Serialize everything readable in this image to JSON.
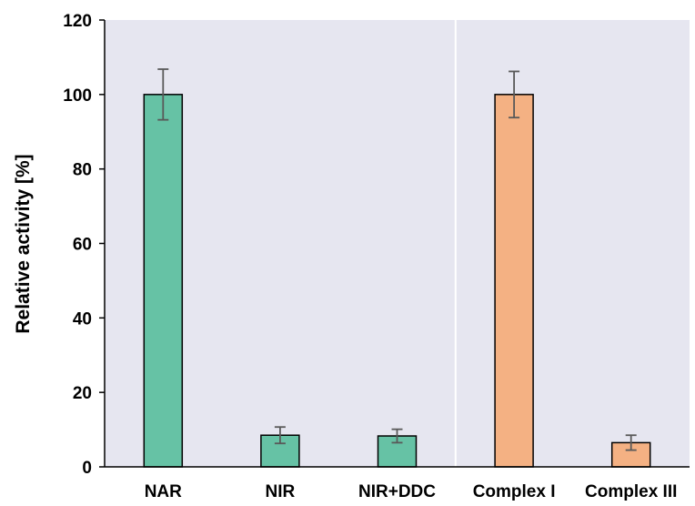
{
  "chart_data": {
    "type": "bar",
    "title": "",
    "xlabel": "",
    "ylabel": "Relative activity [%]",
    "ylim": [
      0,
      120
    ],
    "yticks": [
      0,
      20,
      40,
      60,
      80,
      100,
      120
    ],
    "grid": false,
    "categories": [
      "NAR",
      "NIR",
      "NIR+DDC",
      "Complex I",
      "Complex III"
    ],
    "values": [
      100,
      8.5,
      8.3,
      100,
      6.5
    ],
    "errors": [
      6.8,
      2.2,
      1.8,
      6.2,
      2.0
    ],
    "bar_colors": [
      "#66c2a5",
      "#66c2a5",
      "#66c2a5",
      "#f4b183",
      "#f4b183"
    ],
    "plot_background": "#e6e6f0",
    "group_separator_after_index": 2
  }
}
